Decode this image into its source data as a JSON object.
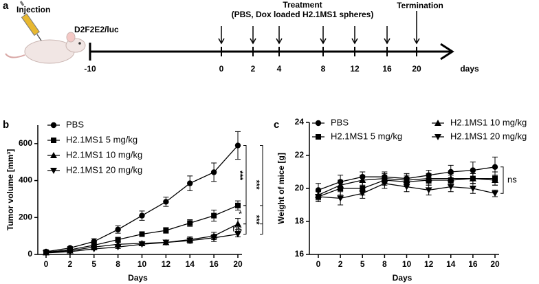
{
  "panel_labels": [
    "a",
    "b",
    "c"
  ],
  "timeline": {
    "injection": "Injection",
    "cell_line": "D2F2E2/luc",
    "treatment": "Treatment",
    "treatment_detail": "(PBS, Dox loaded H2.1MS1 spheres)",
    "termination": "Termination",
    "ticks": [
      "-10",
      "0",
      "2",
      "4",
      "8",
      "12",
      "16",
      "20"
    ],
    "unit": "days"
  },
  "chart_data": [
    {
      "type": "line",
      "xlabel": "Days",
      "ylabel": "Tumor volume [mm³]",
      "categories": [
        "0",
        "2",
        "5",
        "8",
        "10",
        "12",
        "14",
        "16",
        "20"
      ],
      "ylim": [
        0,
        700
      ],
      "yticks": [
        0,
        200,
        400,
        600
      ],
      "legend": "upper left",
      "legend_columns": 1,
      "series": [
        {
          "name": "PBS",
          "color": "#000000",
          "marker": "circle",
          "values": [
            15,
            35,
            70,
            135,
            210,
            285,
            385,
            445,
            590
          ],
          "errors": [
            5,
            8,
            15,
            20,
            25,
            25,
            40,
            50,
            75
          ]
        },
        {
          "name": "H2.1MS1 5 mg/kg",
          "color": "#000000",
          "marker": "square",
          "values": [
            12,
            25,
            50,
            80,
            110,
            130,
            170,
            210,
            265
          ],
          "errors": [
            4,
            6,
            10,
            12,
            12,
            15,
            18,
            30,
            25
          ]
        },
        {
          "name": "H2.1MS1 10 mg/kg",
          "color": "#000000",
          "marker": "triangle",
          "values": [
            10,
            20,
            40,
            55,
            60,
            65,
            80,
            100,
            165
          ],
          "errors": [
            3,
            5,
            8,
            10,
            10,
            12,
            15,
            20,
            30
          ]
        },
        {
          "name": "H2.1MS1 20 mg/kg",
          "color": "#000000",
          "marker": "triangle-down",
          "values": [
            8,
            15,
            30,
            40,
            55,
            65,
            75,
            90,
            110
          ],
          "errors": [
            3,
            4,
            6,
            8,
            8,
            10,
            15,
            20,
            15
          ]
        }
      ],
      "annotations": [
        "***",
        "***",
        "*",
        "***",
        "ns"
      ]
    },
    {
      "type": "line",
      "xlabel": "Days",
      "ylabel": "Weight of mice [g]",
      "categories": [
        "0",
        "2",
        "5",
        "8",
        "10",
        "12",
        "14",
        "16",
        "20"
      ],
      "ylim": [
        16,
        24
      ],
      "yticks": [
        16,
        18,
        20,
        22,
        24
      ],
      "legend": "upper",
      "legend_columns": 2,
      "series": [
        {
          "name": "PBS",
          "color": "#000000",
          "marker": "circle",
          "values": [
            19.9,
            20.4,
            20.7,
            20.7,
            20.6,
            20.8,
            21.0,
            21.1,
            21.3
          ],
          "errors": [
            0.4,
            0.4,
            0.3,
            0.3,
            0.3,
            0.3,
            0.4,
            0.5,
            0.6
          ]
        },
        {
          "name": "H2.1MS1 5 mg/kg",
          "color": "#000000",
          "marker": "square",
          "values": [
            19.5,
            20.0,
            20.0,
            20.5,
            20.4,
            20.5,
            20.5,
            20.6,
            20.6
          ],
          "errors": [
            0.3,
            0.4,
            0.4,
            0.3,
            0.3,
            0.3,
            0.3,
            0.3,
            0.4
          ]
        },
        {
          "name": "H2.1MS1 10 mg/kg",
          "color": "#000000",
          "marker": "triangle",
          "values": [
            19.6,
            20.2,
            20.5,
            20.6,
            20.5,
            20.6,
            20.6,
            20.6,
            20.5
          ],
          "errors": [
            0.3,
            0.3,
            0.3,
            0.3,
            0.3,
            0.3,
            0.3,
            0.3,
            0.3
          ]
        },
        {
          "name": "H2.1MS1 20 mg/kg",
          "color": "#000000",
          "marker": "triangle-down",
          "values": [
            19.5,
            19.4,
            19.7,
            20.3,
            20.1,
            19.9,
            20.1,
            20.0,
            19.7
          ],
          "errors": [
            0.3,
            0.4,
            0.3,
            0.3,
            0.3,
            0.3,
            0.3,
            0.3,
            0.2
          ]
        }
      ],
      "annotations": [
        "ns"
      ]
    }
  ]
}
